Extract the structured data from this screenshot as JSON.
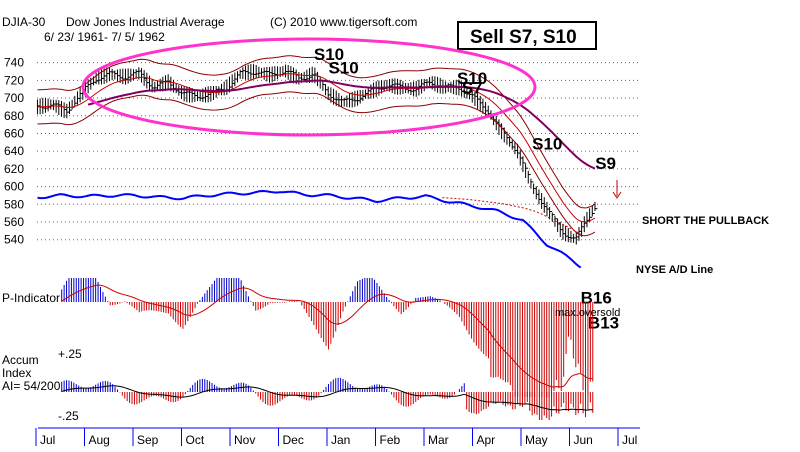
{
  "header": {
    "symbol": "DJIA-30",
    "name": "Dow Jones Industrial Average",
    "copyright": "(C) 2010 www.tigersoft.com",
    "date_range": "6/ 23/ 1961- 7/ 5/ 1962"
  },
  "signal_box": {
    "text": "Sell S7, S10"
  },
  "panel_labels": {
    "p_indicator": "P-Indicator",
    "accum_line1": "Accum",
    "accum_line2": "Index",
    "accum_ai": "AI= 54/200",
    "accum_plus": "+.25",
    "accum_minus": "-.25"
  },
  "annotations": {
    "short_the_pullback": "SHORT THE PULLBACK",
    "nyse_ad_line": "NYSE A/D Line",
    "max_oversold": "max.oversold"
  },
  "signals": [
    {
      "label": "S10",
      "month_pos": 5.4,
      "price": 743
    },
    {
      "label": "S10",
      "month_pos": 5.7,
      "price": 728
    },
    {
      "label": "S10",
      "month_pos": 8.35,
      "price": 716
    },
    {
      "label": "S7",
      "month_pos": 8.45,
      "price": 705
    },
    {
      "label": "S10",
      "month_pos": 9.9,
      "price": 642
    },
    {
      "label": "S9",
      "month_pos": 11.2,
      "price": 620
    },
    {
      "label": "B16",
      "month_pos": 10.9,
      "price": 468
    },
    {
      "label": "B13",
      "month_pos": 11.05,
      "price": 440
    }
  ],
  "colors": {
    "price_bars": "#000000",
    "band": "#8b0000",
    "ema": "#cc0000",
    "long_ma": "#800060",
    "ad_line": "#0000ff",
    "ellipse": "#ff33cc",
    "positive": "#0000cc",
    "negative": "#cc0000",
    "grid": "#00aa00",
    "axis": "#0000ff"
  },
  "chart_data": {
    "type": "line",
    "title": "DJIA-30 Dow Jones Industrial Average 6/23/1961 - 7/5/1962",
    "y_ticks": [
      740,
      720,
      700,
      680,
      660,
      640,
      620,
      600,
      580,
      560,
      540
    ],
    "ylim": [
      525,
      752
    ],
    "x_tick_labels": [
      "Jul",
      "Aug",
      "Sep",
      "Oct",
      "Nov",
      "Dec",
      "Jan",
      "Feb",
      "Mar",
      "Apr",
      "May",
      "Jun",
      "Jul"
    ],
    "series": [
      {
        "name": "DJIA",
        "x": [
          -0.3,
          0,
          0.3,
          0.6,
          0.9,
          1.2,
          1.5,
          1.8,
          2.1,
          2.4,
          2.7,
          3.0,
          3.3,
          3.6,
          3.9,
          4.2,
          4.5,
          4.8,
          5.1,
          5.4,
          5.7,
          6.0,
          6.3,
          6.6,
          6.9,
          7.2,
          7.5,
          7.8,
          8.1,
          8.4,
          8.7,
          9.0,
          9.3,
          9.6,
          9.9,
          10.2,
          10.5,
          10.8,
          11.0,
          11.2
        ],
        "y": [
          690,
          693,
          685,
          705,
          722,
          727,
          724,
          728,
          712,
          718,
          705,
          702,
          705,
          712,
          728,
          730,
          726,
          731,
          722,
          727,
          705,
          695,
          700,
          708,
          715,
          712,
          710,
          718,
          712,
          712,
          700,
          685,
          660,
          640,
          600,
          575,
          550,
          540,
          560,
          578
        ]
      },
      {
        "name": "NYSE A/D Line",
        "x": [
          -0.3,
          0.2,
          0.7,
          1.2,
          1.7,
          2.2,
          2.7,
          3.2,
          3.7,
          4.2,
          4.7,
          5.2,
          5.7,
          6.2,
          6.7,
          7.2,
          7.7,
          8.2,
          8.7,
          9.2,
          9.7,
          10.2,
          10.7,
          10.95
        ],
        "y": [
          588,
          590,
          589,
          590,
          590,
          588,
          587,
          590,
          592,
          593,
          595,
          591,
          590,
          587,
          584,
          587,
          589,
          583,
          578,
          572,
          562,
          535,
          518,
          508
        ]
      }
    ],
    "p_indicator_label": "P-Indicator",
    "accum_index_label": "Accum Index",
    "accum_index_ticks": [
      "+.25",
      "-.25"
    ]
  }
}
